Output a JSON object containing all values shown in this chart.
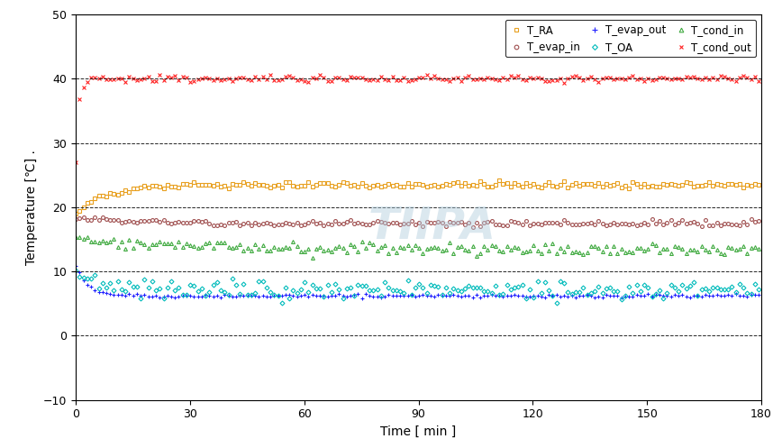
{
  "xlabel": "Time [ min ]",
  "ylabel": "Temperature [℃] .",
  "xlim": [
    0,
    180
  ],
  "ylim": [
    -10,
    50
  ],
  "yticks": [
    -10,
    0,
    10,
    20,
    30,
    40,
    50
  ],
  "xticks": [
    0,
    30,
    60,
    90,
    120,
    150,
    180
  ],
  "grid_y": [
    0,
    10,
    20,
    30,
    40
  ],
  "series": {
    "T_RA": {
      "color": "#E8A020",
      "marker": "s"
    },
    "T_evap_in": {
      "color": "#A05050",
      "marker": "o"
    },
    "T_evap_out": {
      "color": "#2020FF",
      "marker": "+"
    },
    "T_OA": {
      "color": "#00BBBB",
      "marker": "D"
    },
    "T_cond_in": {
      "color": "#40AA40",
      "marker": "^"
    },
    "T_cond_out": {
      "color": "#FF2020",
      "marker": "x"
    }
  },
  "watermark_text": "TIIPA",
  "watermark_color": "#B0CCDD",
  "watermark_alpha": 0.45,
  "background_color": "#FFFFFF",
  "total_time": 180,
  "n_points": 540
}
